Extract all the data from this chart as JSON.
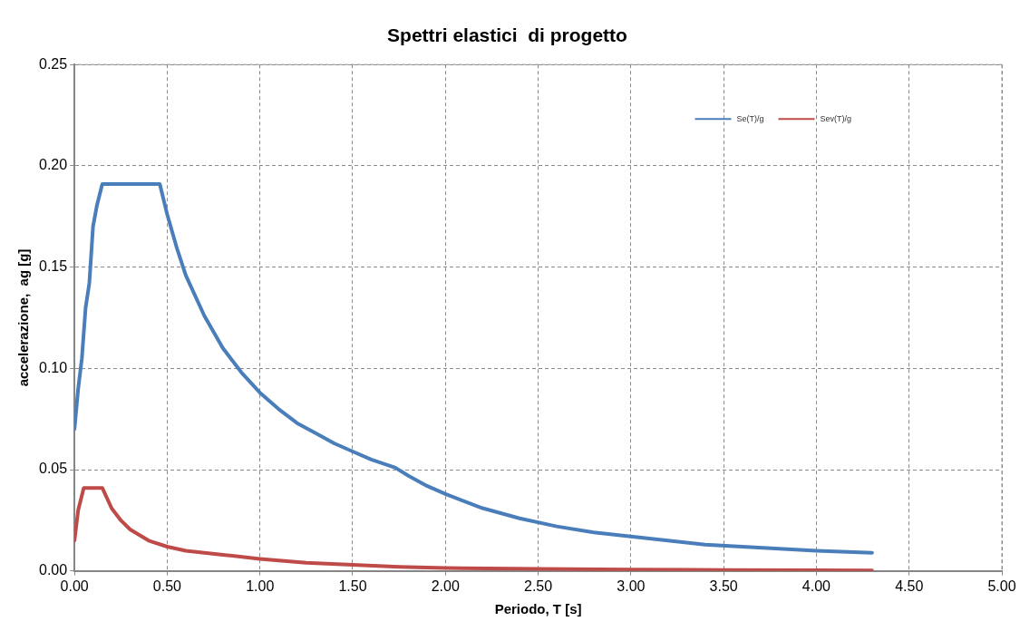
{
  "chart_data": {
    "type": "line",
    "title": "Spettri elastici  di progetto",
    "xlabel": "Periodo, T [s]",
    "ylabel": "accelerazione,  ag [g]",
    "xlim": [
      0,
      5
    ],
    "xticks": [
      {
        "value": 0,
        "label": "0.00"
      },
      {
        "value": 0.5,
        "label": "0.50"
      },
      {
        "value": 1,
        "label": "1.00"
      },
      {
        "value": 1.5,
        "label": "1.50"
      },
      {
        "value": 2,
        "label": "2.00"
      },
      {
        "value": 2.5,
        "label": "2.50"
      },
      {
        "value": 3,
        "label": "3.00"
      },
      {
        "value": 3.5,
        "label": "3.50"
      },
      {
        "value": 4,
        "label": "4.00"
      },
      {
        "value": 4.5,
        "label": "4.50"
      },
      {
        "value": 5,
        "label": "5.00"
      }
    ],
    "ylim": [
      0,
      0.25
    ],
    "yticks": [
      {
        "value": 0,
        "label": "0.00"
      },
      {
        "value": 0.05,
        "label": "0.05"
      },
      {
        "value": 0.1,
        "label": "0.10"
      },
      {
        "value": 0.15,
        "label": "0.15"
      },
      {
        "value": 0.2,
        "label": "0.20"
      },
      {
        "value": 0.25,
        "label": "0.25"
      }
    ],
    "grid": true,
    "legend": "top right",
    "marker": "none",
    "line_style": "solid",
    "series": [
      {
        "name": "Se(T)/g",
        "color": "#4a7ebb",
        "x": [
          0,
          0.02,
          0.04,
          0.06,
          0.08,
          0.1,
          0.12,
          0.15,
          0.46,
          0.5,
          0.55,
          0.6,
          0.7,
          0.8,
          0.9,
          1.0,
          1.1,
          1.2,
          1.3,
          1.4,
          1.5,
          1.6,
          1.73,
          1.8,
          1.9,
          2.0,
          2.2,
          2.4,
          2.6,
          2.8,
          3.0,
          3.2,
          3.4,
          3.6,
          3.8,
          4.0,
          4.3
        ],
        "values": [
          0.07,
          0.09,
          0.105,
          0.13,
          0.142,
          0.17,
          0.18,
          0.191,
          0.191,
          0.176,
          0.16,
          0.146,
          0.126,
          0.11,
          0.098,
          0.088,
          0.08,
          0.073,
          0.068,
          0.063,
          0.059,
          0.055,
          0.051,
          0.047,
          0.042,
          0.038,
          0.031,
          0.026,
          0.022,
          0.019,
          0.017,
          0.015,
          0.013,
          0.012,
          0.011,
          0.01,
          0.009
        ]
      },
      {
        "name": "Sev(T)/g",
        "color": "#be4b48",
        "x": [
          0,
          0.02,
          0.05,
          0.15,
          0.2,
          0.25,
          0.3,
          0.4,
          0.5,
          0.6,
          0.8,
          1.0,
          1.25,
          1.5,
          1.75,
          2.0,
          2.5,
          3.0,
          3.5,
          4.0,
          4.3
        ],
        "values": [
          0.015,
          0.03,
          0.041,
          0.041,
          0.031,
          0.025,
          0.0205,
          0.015,
          0.012,
          0.01,
          0.008,
          0.006,
          0.004,
          0.003,
          0.002,
          0.0015,
          0.001,
          0.0007,
          0.0005,
          0.0004,
          0.0003
        ]
      }
    ]
  }
}
